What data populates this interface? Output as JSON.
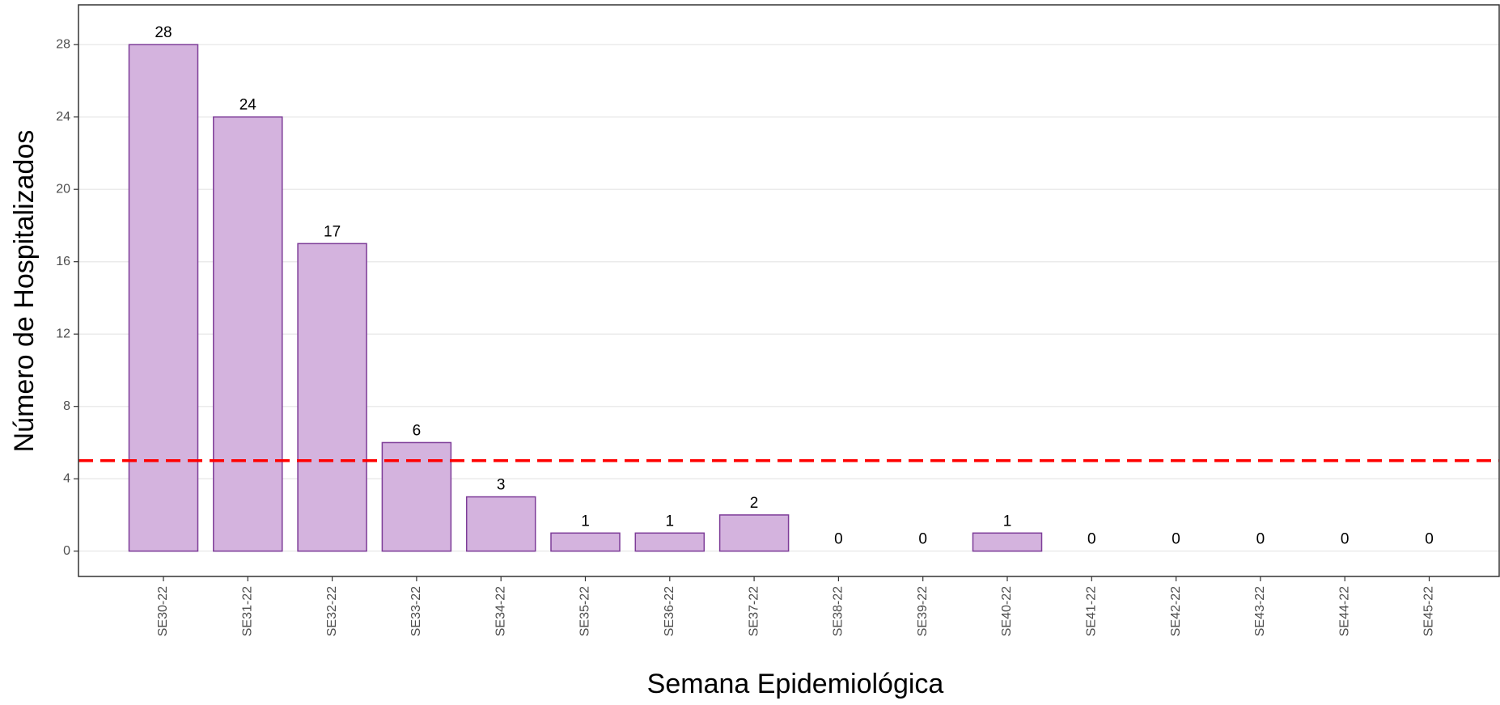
{
  "chart_data": {
    "type": "bar",
    "x_label": "Semana Epidemiológica",
    "y_label": "Número de Hospitalizados",
    "categories": [
      "SE30-22",
      "SE31-22",
      "SE32-22",
      "SE33-22",
      "SE34-22",
      "SE35-22",
      "SE36-22",
      "SE37-22",
      "SE38-22",
      "SE39-22",
      "SE40-22",
      "SE41-22",
      "SE42-22",
      "SE43-22",
      "SE44-22",
      "SE45-22"
    ],
    "values": [
      28,
      24,
      17,
      6,
      3,
      1,
      1,
      2,
      0,
      0,
      1,
      0,
      0,
      0,
      0,
      0
    ],
    "color": "#d4b3de",
    "edge_color": "#7d3c98",
    "ylim": [
      -1.4,
      30.2
    ],
    "yticks": [
      0,
      4,
      8,
      12,
      16,
      20,
      24,
      28
    ],
    "grid": true,
    "reference_line": {
      "value": 5,
      "color": "#ff0000",
      "style": "dashed"
    }
  }
}
